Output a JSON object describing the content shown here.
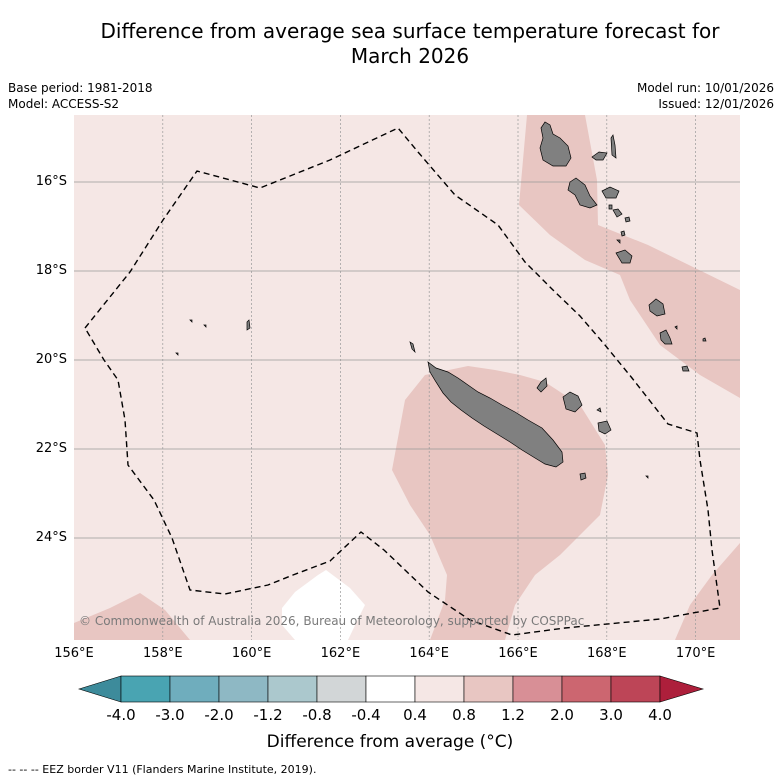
{
  "title": {
    "line1": "Difference from average sea surface temperature forecast for",
    "line2": "March 2026"
  },
  "meta": {
    "base_period": "Base period: 1981-2018",
    "model": "Model: ACCESS-S2",
    "model_run": "Model run: 10/01/2026",
    "issued": "Issued: 12/01/2026"
  },
  "map": {
    "lat_labels": [
      "16°S",
      "18°S",
      "20°S",
      "22°S",
      "24°S"
    ],
    "lon_labels": [
      "156°E",
      "158°E",
      "160°E",
      "162°E",
      "164°E",
      "166°E",
      "168°E",
      "170°E"
    ],
    "copyright": "© Commonwealth of Australia 2026, Bureau of Meteorology, supported by COSPPac",
    "colors": {
      "background_anomaly": "#f5e7e5",
      "warm_anomaly": "#e8c6c2",
      "neutral": "#ffffff",
      "land": "#808080",
      "eez_line": "#000000",
      "grid": "#999999"
    }
  },
  "colorbar": {
    "ticks": [
      "-4.0",
      "-3.0",
      "-2.0",
      "-1.2",
      "-0.8",
      "-0.4",
      "0.4",
      "0.8",
      "1.2",
      "2.0",
      "3.0",
      "4.0"
    ],
    "colors": [
      "#3d8b9b",
      "#49a4b2",
      "#6fadbd",
      "#8eb8c4",
      "#abc8cd",
      "#d2d6d7",
      "#ffffff",
      "#f5e7e5",
      "#e8c6c2",
      "#d88f96",
      "#cc6670",
      "#bd4557",
      "#ad1f3b"
    ],
    "title": "Difference from average (°C)"
  },
  "legend_note": "-- -- -- EEZ border V11 (Flanders Marine Institute, 2019)."
}
